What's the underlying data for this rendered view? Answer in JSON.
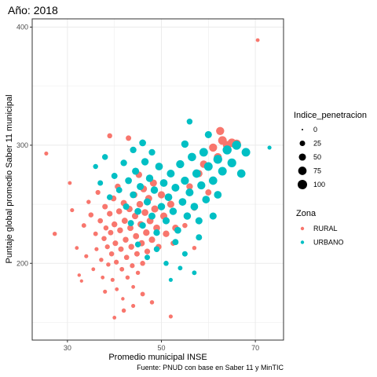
{
  "chart_data": {
    "type": "scatter",
    "title": "Año: 2018",
    "xlabel": "Promedio municipal INSE",
    "ylabel": "Puntaje global promedio Saber 11 municipal",
    "caption": "Fuente: PNUD con base en Saber 11 y MinTIC",
    "xlim": [
      22.5,
      76
    ],
    "ylim": [
      135,
      407
    ],
    "x_ticks": [
      30,
      50,
      70
    ],
    "y_ticks": [
      200,
      300,
      400
    ],
    "x_tick_labels": [
      "30",
      "50",
      "70"
    ],
    "y_tick_labels": [
      "200",
      "300",
      "400"
    ],
    "grid": true,
    "size_legend": {
      "title": "Indice_penetracion",
      "breaks": [
        0,
        25,
        50,
        75,
        100
      ],
      "labels": [
        "0",
        "25",
        "50",
        "75",
        "100"
      ]
    },
    "color_legend": {
      "title": "Zona",
      "placement": "right"
    },
    "series": [
      {
        "name": "RURAL",
        "color": "#F8766D",
        "points": [
          [
            25.5,
            293,
            10
          ],
          [
            27.3,
            225,
            12
          ],
          [
            70.5,
            389,
            8
          ],
          [
            30.5,
            268,
            8
          ],
          [
            31,
            245,
            10
          ],
          [
            32,
            213,
            8
          ],
          [
            32.5,
            190,
            6
          ],
          [
            33,
            185,
            5
          ],
          [
            33.5,
            232,
            15
          ],
          [
            34,
            206,
            10
          ],
          [
            34.5,
            252,
            12
          ],
          [
            35,
            241,
            20
          ],
          [
            35.5,
            195,
            8
          ],
          [
            36,
            225,
            15
          ],
          [
            36.2,
            212,
            10
          ],
          [
            36.5,
            260,
            18
          ],
          [
            37,
            236,
            22
          ],
          [
            37.2,
            203,
            12
          ],
          [
            37.5,
            188,
            8
          ],
          [
            37.8,
            221,
            20
          ],
          [
            38,
            248,
            25
          ],
          [
            38.2,
            230,
            20
          ],
          [
            38.5,
            214,
            18
          ],
          [
            38.7,
            199,
            12
          ],
          [
            39,
            242,
            28
          ],
          [
            39.2,
            226,
            24
          ],
          [
            39.4,
            208,
            20
          ],
          [
            39.6,
            186,
            10
          ],
          [
            39.8,
            255,
            30
          ],
          [
            40,
            233,
            30
          ],
          [
            40.2,
            217,
            26
          ],
          [
            40.4,
            201,
            18
          ],
          [
            40.5,
            178,
            8
          ],
          [
            40.7,
            265,
            30
          ],
          [
            41,
            244,
            32
          ],
          [
            41.2,
            228,
            30
          ],
          [
            41.4,
            212,
            25
          ],
          [
            41.6,
            195,
            15
          ],
          [
            41.8,
            170,
            6
          ],
          [
            42,
            251,
            35
          ],
          [
            42.2,
            236,
            34
          ],
          [
            42.4,
            220,
            30
          ],
          [
            42.6,
            205,
            22
          ],
          [
            42.8,
            188,
            12
          ],
          [
            43,
            270,
            35
          ],
          [
            43.2,
            246,
            38
          ],
          [
            43.4,
            230,
            35
          ],
          [
            43.6,
            214,
            30
          ],
          [
            43.8,
            198,
            18
          ],
          [
            44,
            180,
            8
          ],
          [
            44.2,
            258,
            40
          ],
          [
            44.4,
            240,
            38
          ],
          [
            44.6,
            223,
            34
          ],
          [
            44.8,
            208,
            25
          ],
          [
            45,
            192,
            12
          ],
          [
            45.2,
            275,
            40
          ],
          [
            45.4,
            250,
            42
          ],
          [
            45.6,
            233,
            40
          ],
          [
            45.8,
            217,
            34
          ],
          [
            46,
            200,
            20
          ],
          [
            46.2,
            263,
            45
          ],
          [
            46.5,
            243,
            44
          ],
          [
            46.8,
            226,
            40
          ],
          [
            47,
            210,
            28
          ],
          [
            47.3,
            255,
            48
          ],
          [
            47.6,
            236,
            46
          ],
          [
            48,
            220,
            38
          ],
          [
            48.3,
            268,
            50
          ],
          [
            48.6,
            246,
            50
          ],
          [
            49,
            230,
            45
          ],
          [
            49.4,
            214,
            30
          ],
          [
            50,
            258,
            52
          ],
          [
            50.5,
            240,
            50
          ],
          [
            51,
            225,
            40
          ],
          [
            52,
            250,
            50
          ],
          [
            52.5,
            217,
            20
          ],
          [
            53,
            230,
            40
          ],
          [
            54,
            196,
            10
          ],
          [
            55,
            232,
            20
          ],
          [
            56,
            265,
            40
          ],
          [
            57,
            247,
            30
          ],
          [
            58,
            276,
            50
          ],
          [
            59,
            284,
            55
          ],
          [
            60,
            260,
            35
          ],
          [
            61,
            298,
            70
          ],
          [
            62,
            290,
            65
          ],
          [
            63,
            304,
            80
          ],
          [
            64,
            300,
            75
          ],
          [
            65,
            302,
            80
          ],
          [
            66,
            301,
            85
          ],
          [
            62.5,
            312,
            70
          ],
          [
            42,
            160,
            12
          ],
          [
            44,
            164,
            10
          ],
          [
            40,
            154,
            8
          ],
          [
            46,
            174,
            15
          ],
          [
            48,
            167,
            12
          ],
          [
            52,
            155,
            10
          ],
          [
            38,
            176,
            10
          ],
          [
            39,
            308,
            20
          ],
          [
            43,
            306,
            25
          ],
          [
            57,
            213,
            12
          ]
        ]
      },
      {
        "name": "URBANO",
        "color": "#00BFC4",
        "points": [
          [
            36,
            282,
            20
          ],
          [
            37,
            268,
            25
          ],
          [
            38,
            290,
            30
          ],
          [
            39,
            256,
            30
          ],
          [
            40,
            274,
            35
          ],
          [
            41,
            262,
            35
          ],
          [
            42,
            285,
            40
          ],
          [
            42.5,
            248,
            38
          ],
          [
            43,
            270,
            45
          ],
          [
            43.5,
            234,
            35
          ],
          [
            44,
            258,
            45
          ],
          [
            44.5,
            278,
            50
          ],
          [
            45,
            244,
            45
          ],
          [
            45.5,
            265,
            50
          ],
          [
            46,
            232,
            40
          ],
          [
            46.5,
            286,
            55
          ],
          [
            47,
            252,
            50
          ],
          [
            47.5,
            272,
            55
          ],
          [
            48,
            240,
            48
          ],
          [
            48.5,
            262,
            55
          ],
          [
            49,
            226,
            40
          ],
          [
            49.5,
            282,
            60
          ],
          [
            50,
            248,
            55
          ],
          [
            50.5,
            268,
            60
          ],
          [
            51,
            236,
            50
          ],
          [
            51.5,
            256,
            60
          ],
          [
            52,
            276,
            65
          ],
          [
            52.5,
            244,
            55
          ],
          [
            53,
            264,
            65
          ],
          [
            53.5,
            228,
            45
          ],
          [
            54,
            284,
            70
          ],
          [
            54.5,
            252,
            60
          ],
          [
            55,
            270,
            70
          ],
          [
            55.5,
            240,
            55
          ],
          [
            56,
            260,
            65
          ],
          [
            56.5,
            290,
            75
          ],
          [
            57,
            248,
            60
          ],
          [
            57.5,
            276,
            75
          ],
          [
            58,
            236,
            50
          ],
          [
            58.5,
            266,
            70
          ],
          [
            59,
            294,
            80
          ],
          [
            59.5,
            254,
            60
          ],
          [
            60,
            282,
            80
          ],
          [
            61,
            270,
            75
          ],
          [
            62,
            288,
            85
          ],
          [
            63,
            278,
            80
          ],
          [
            64,
            296,
            90
          ],
          [
            65,
            285,
            85
          ],
          [
            66,
            300,
            90
          ],
          [
            67,
            276,
            75
          ],
          [
            68,
            294,
            80
          ],
          [
            45,
            216,
            30
          ],
          [
            47,
            205,
            25
          ],
          [
            49,
            212,
            30
          ],
          [
            51,
            200,
            20
          ],
          [
            53,
            218,
            35
          ],
          [
            55,
            208,
            25
          ],
          [
            44,
            296,
            40
          ],
          [
            46,
            302,
            45
          ],
          [
            48,
            294,
            40
          ],
          [
            56,
            320,
            30
          ],
          [
            73,
            298,
            10
          ],
          [
            57,
            192,
            15
          ],
          [
            52,
            186,
            10
          ],
          [
            55,
            301,
            55
          ],
          [
            60,
            309,
            50
          ],
          [
            61,
            240,
            50
          ],
          [
            62,
            258,
            60
          ],
          [
            58,
            222,
            35
          ],
          [
            54,
            196,
            15
          ]
        ]
      }
    ]
  }
}
